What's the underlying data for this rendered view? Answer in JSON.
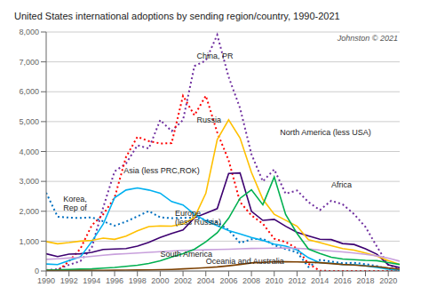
{
  "chart_data": {
    "type": "line",
    "title": "United States international adoptions by sending region/country, 1990-2021",
    "x": [
      1990,
      1991,
      1992,
      1993,
      1994,
      1995,
      1996,
      1997,
      1998,
      1999,
      2000,
      2001,
      2002,
      2003,
      2004,
      2005,
      2006,
      2007,
      2008,
      2009,
      2010,
      2011,
      2012,
      2013,
      2014,
      2015,
      2016,
      2017,
      2018,
      2019,
      2020,
      2021
    ],
    "xlim": [
      1990,
      2021
    ],
    "xticks": [
      1990,
      1992,
      1994,
      1996,
      1998,
      2000,
      2002,
      2004,
      2006,
      2008,
      2010,
      2012,
      2014,
      2016,
      2018,
      2020
    ],
    "ylim": [
      0,
      8000
    ],
    "yticks": [
      0,
      {
        "value": 1000,
        "label": "1,000"
      },
      {
        "value": 2000,
        "label": "2,000"
      },
      {
        "value": 3000,
        "label": "3,000"
      },
      {
        "value": 4000,
        "label": "4,000"
      },
      {
        "value": 5000,
        "label": "5,000"
      },
      {
        "value": 6000,
        "label": "6,000"
      },
      {
        "value": 7000,
        "label": "7,000"
      },
      {
        "value": 8000,
        "label": "8,000"
      }
    ],
    "grid": true,
    "series": [
      {
        "name": "China, PR",
        "color": "#7030A0",
        "line_style": "dotted",
        "values": [
          29,
          61,
          206,
          330,
          787,
          2130,
          3333,
          3597,
          4206,
          4101,
          5053,
          4681,
          5053,
          6859,
          7044,
          7903,
          6493,
          5453,
          3909,
          3001,
          3401,
          2587,
          2697,
          2306,
          2040,
          2354,
          2231,
          1905,
          1475,
          819,
          202,
          68
        ]
      },
      {
        "name": "Russia",
        "color": "#FF0000",
        "line_style": "dotted",
        "values": [
          0,
          0,
          324,
          746,
          1530,
          1896,
          2454,
          3816,
          4491,
          4348,
          4269,
          4279,
          5865,
          5209,
          5865,
          4639,
          3706,
          2310,
          1861,
          1586,
          1082,
          970,
          748,
          245,
          9,
          0,
          0,
          2,
          2,
          0,
          0,
          0
        ]
      },
      {
        "name": "Korea, Rep of",
        "color": "#0070C0",
        "line_style": "dotted",
        "values": [
          2620,
          1818,
          1787,
          1775,
          1795,
          1666,
          1516,
          1654,
          1829,
          2008,
          1794,
          1770,
          1779,
          1790,
          1716,
          1630,
          1376,
          939,
          1061,
          1080,
          863,
          736,
          627,
          138,
          370,
          318,
          260,
          276,
          231,
          166,
          66,
          17
        ]
      },
      {
        "name": "Asia (less PRC,ROK)",
        "color": "#3D0070",
        "line_style": "solid",
        "values": [
          577,
          483,
          563,
          575,
          622,
          721,
          735,
          753,
          830,
          961,
          1122,
          1256,
          1373,
          1781,
          1931,
          2088,
          3264,
          3282,
          1999,
          1695,
          1727,
          1498,
          1295,
          1178,
          1063,
          1052,
          919,
          888,
          741,
          562,
          211,
          116
        ]
      },
      {
        "name": "Europe (less Russia)",
        "color": "#00B0F0",
        "line_style": "solid",
        "values": [
          234,
          216,
          352,
          472,
          985,
          1569,
          2454,
          2711,
          2782,
          2711,
          2604,
          2326,
          2210,
          1901,
          1682,
          1517,
          1354,
          1242,
          1123,
          1023,
          897,
          832,
          706,
          445,
          278,
          258,
          219,
          214,
          175,
          120,
          60,
          28
        ]
      },
      {
        "name": "North America (less USA)",
        "color": "#FFC000",
        "line_style": "solid",
        "values": [
          985,
          910,
          950,
          1001,
          1025,
          1100,
          1060,
          1170,
          1345,
          1488,
          1510,
          1503,
          1573,
          1790,
          2600,
          4400,
          5062,
          4453,
          3300,
          2400,
          1900,
          1700,
          1500,
          1050,
          950,
          850,
          750,
          700,
          600,
          500,
          350,
          220
        ]
      },
      {
        "name": "South America",
        "color": "#C8A0DC",
        "line_style": "solid",
        "values": [
          390,
          409,
          434,
          455,
          490,
          530,
          560,
          580,
          600,
          624,
          649,
          670,
          690,
          700,
          710,
          720,
          730,
          745,
          755,
          760,
          768,
          770,
          760,
          740,
          700,
          670,
          640,
          600,
          560,
          510,
          430,
          330
        ]
      },
      {
        "name": "Africa",
        "color": "#00B050",
        "line_style": "solid",
        "values": [
          37,
          41,
          54,
          62,
          72,
          95,
          120,
          155,
          195,
          255,
          340,
          471,
          580,
          731,
          976,
          1282,
          1766,
          2433,
          2720,
          2219,
          3150,
          1892,
          1258,
          736,
          590,
          462,
          400,
          380,
          355,
          345,
          280,
          220
        ]
      },
      {
        "name": "Oceania and Australia",
        "color": "#7B3F00",
        "line_style": "solid",
        "values": [
          15,
          16,
          16,
          18,
          20,
          22,
          25,
          28,
          32,
          36,
          44,
          54,
          70,
          88,
          110,
          138,
          175,
          220,
          270,
          290,
          310,
          310,
          305,
          295,
          280,
          250,
          220,
          200,
          170,
          150,
          100,
          60
        ]
      }
    ],
    "annotations": [
      {
        "text": "China, PR",
        "x": 2003.2,
        "y": 7050
      },
      {
        "text": "Russia",
        "x": 2003.2,
        "y": 4900
      },
      {
        "text": "Korea,\nRep of",
        "x": 1991.5,
        "y": 1950
      },
      {
        "text": "Asia (less PRC,ROK)",
        "x": 1996.8,
        "y": 3200
      },
      {
        "text": "Europe\n(less Russia)",
        "x": 2001.3,
        "y": 1500
      },
      {
        "text": "North America (less USA)",
        "x": 2010.5,
        "y": 4500
      },
      {
        "text": "South America",
        "x": 2000.0,
        "y": 430
      },
      {
        "text": "Africa",
        "x": 2015.0,
        "y": 2750
      },
      {
        "text": "Oceania and Australia",
        "x": 2004.0,
        "y": 175
      },
      {
        "text": "Johnston © 2021"
      }
    ]
  }
}
